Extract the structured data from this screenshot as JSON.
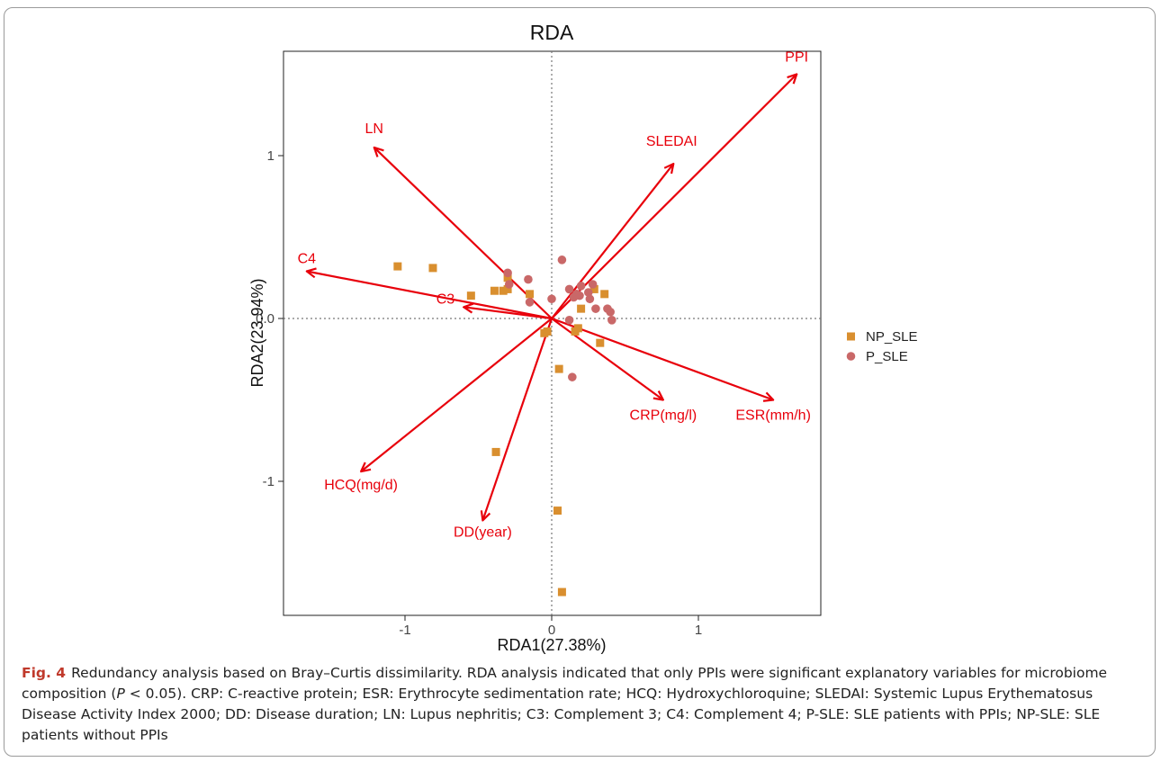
{
  "chart_data": {
    "type": "scatter",
    "title": "RDA",
    "xlabel": "RDA1(27.38%)",
    "ylabel": "RDA2(23.94%)",
    "xlim": [
      -1.83,
      1.83
    ],
    "ylim": [
      -1.83,
      1.83
    ],
    "xticks": [
      -1,
      0,
      1
    ],
    "yticks": [
      -1,
      0,
      1
    ],
    "xtick_labels": [
      "-1",
      "0",
      "1"
    ],
    "ytick_labels": [
      "-1",
      "0.0",
      "1"
    ],
    "grid": false,
    "reference_lines": "dotted at x=0 and y=0",
    "legend_position": "right",
    "series": [
      {
        "name": "NP_SLE",
        "marker": "square",
        "color": "#d98f2f",
        "points": [
          [
            -1.05,
            0.32
          ],
          [
            -0.81,
            0.31
          ],
          [
            -0.55,
            0.14
          ],
          [
            -0.39,
            0.17
          ],
          [
            -0.33,
            0.17
          ],
          [
            -0.3,
            0.18
          ],
          [
            -0.3,
            0.25
          ],
          [
            -0.15,
            0.15
          ],
          [
            -0.05,
            -0.09
          ],
          [
            -0.03,
            -0.08
          ],
          [
            0.05,
            -0.31
          ],
          [
            0.16,
            -0.08
          ],
          [
            0.18,
            -0.06
          ],
          [
            0.2,
            0.06
          ],
          [
            0.29,
            0.18
          ],
          [
            0.33,
            -0.15
          ],
          [
            0.36,
            0.15
          ],
          [
            -0.38,
            -0.82
          ],
          [
            0.04,
            -1.18
          ],
          [
            0.07,
            -1.68
          ]
        ]
      },
      {
        "name": "P_SLE",
        "marker": "circle",
        "color": "#c96868",
        "points": [
          [
            -0.3,
            0.28
          ],
          [
            -0.29,
            0.21
          ],
          [
            -0.15,
            0.1
          ],
          [
            -0.16,
            0.24
          ],
          [
            0.0,
            0.12
          ],
          [
            0.07,
            0.36
          ],
          [
            0.12,
            0.18
          ],
          [
            0.12,
            -0.01
          ],
          [
            0.15,
            0.13
          ],
          [
            0.17,
            0.15
          ],
          [
            0.19,
            0.14
          ],
          [
            0.2,
            0.2
          ],
          [
            0.25,
            0.16
          ],
          [
            0.26,
            0.12
          ],
          [
            0.28,
            0.21
          ],
          [
            0.3,
            0.06
          ],
          [
            0.38,
            0.06
          ],
          [
            0.4,
            0.04
          ],
          [
            0.41,
            -0.01
          ],
          [
            0.14,
            -0.36
          ]
        ]
      }
    ],
    "arrows": [
      {
        "label": "PPI",
        "x": 1.67,
        "y": 1.5
      },
      {
        "label": "SLEDAI",
        "x": 0.83,
        "y": 0.95
      },
      {
        "label": "LN",
        "x": -1.21,
        "y": 1.05
      },
      {
        "label": "C4",
        "x": -1.67,
        "y": 0.29
      },
      {
        "label": "C3",
        "x": -0.6,
        "y": 0.07
      },
      {
        "label": "CRP(mg/l)",
        "x": 0.76,
        "y": -0.5
      },
      {
        "label": "ESR(mm/h)",
        "x": 1.51,
        "y": -0.5
      },
      {
        "label": "HCQ(mg/d)",
        "x": -1.3,
        "y": -0.94
      },
      {
        "label": "DD(year)",
        "x": -0.47,
        "y": -1.24
      }
    ],
    "arrow_color": "#e8000b"
  },
  "caption": {
    "label": "Fig. 4",
    "text_before": "Redundancy analysis based on Bray–Curtis dissimilarity. RDA analysis indicated that only PPIs were significant explanatory variables for microbiome composition (",
    "p_symbol": "P",
    "text_after": " < 0.05). CRP: C-reactive protein; ESR: Erythrocyte sedimentation rate; HCQ: Hydroxychloroquine; SLEDAI: Systemic Lupus Erythematosus Disease Activity Index 2000; DD: Disease duration; LN: Lupus nephritis; C3: Complement 3; C4: Complement 4; P-SLE: SLE patients with PPIs; NP-SLE: SLE patients without PPIs"
  }
}
